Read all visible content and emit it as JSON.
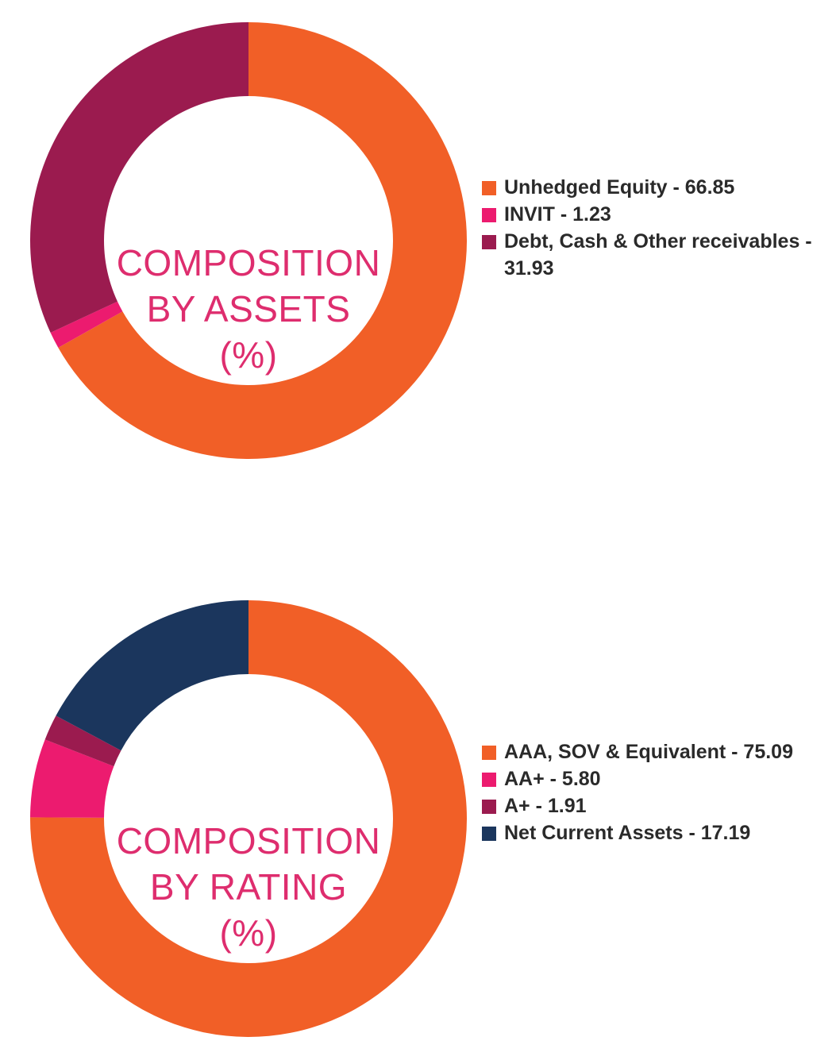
{
  "chart_data": [
    {
      "type": "pie",
      "donut": true,
      "title": [
        "COMPOSITION",
        "BY ASSETS",
        "(%)"
      ],
      "slices": [
        {
          "label": "Unhedged Equity - 66.85",
          "value": 66.85,
          "color": "#f15f27"
        },
        {
          "label": "INVIT - 1.23",
          "value": 1.23,
          "color": "#ec1b6f"
        },
        {
          "label": "Debt, Cash & Other receivables - 31.93",
          "value": 31.93,
          "color": "#9b1b4f"
        }
      ],
      "legend_position": "right"
    },
    {
      "type": "pie",
      "donut": true,
      "title": [
        "COMPOSITION",
        "BY RATING",
        "(%)"
      ],
      "slices": [
        {
          "label": "AAA, SOV & Equivalent - 75.09",
          "value": 75.09,
          "color": "#f15f27"
        },
        {
          "label": "AA+ - 5.80",
          "value": 5.8,
          "color": "#ec1b6f"
        },
        {
          "label": "A+ - 1.91",
          "value": 1.91,
          "color": "#9b1b4f"
        },
        {
          "label": "Net Current Assets - 17.19",
          "value": 17.19,
          "color": "#1b365d"
        }
      ],
      "legend_position": "right"
    }
  ]
}
